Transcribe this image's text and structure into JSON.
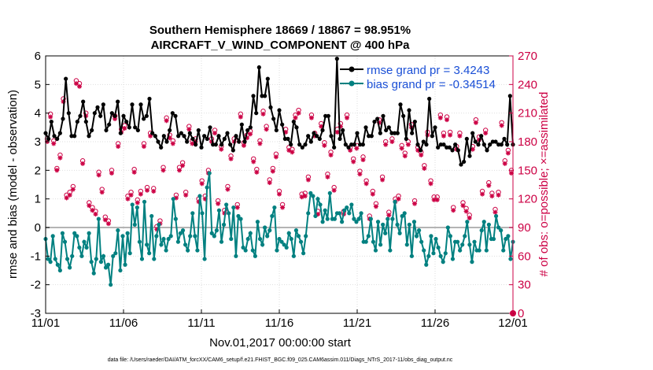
{
  "chart_data": {
    "type": "line",
    "title": "Southern Hemisphere 18669 / 18867 = 98.951%",
    "subtitle": "AIRCRAFT_V_WIND_COMPONENT @ 400 hPa",
    "xlabel": "Nov.01,2017 00:00:00 start",
    "ylabel_left": "rmse and bias (model - observation)",
    "ylabel_right": "# of obs: o=possible; ×=assimilated",
    "xlim": [
      0,
      30
    ],
    "ylim_left": [
      -3,
      6
    ],
    "ylim_right": [
      0,
      270
    ],
    "x_tick_values": [
      0,
      5,
      10,
      15,
      20,
      25,
      30
    ],
    "x_tick_labels": [
      "11/01",
      "11/06",
      "11/11",
      "11/16",
      "11/21",
      "11/26",
      "12/01"
    ],
    "y_left_ticks": [
      "-3",
      "-2",
      "-1",
      "0",
      "1",
      "2",
      "3",
      "4",
      "5",
      "6"
    ],
    "y_right_ticks": [
      "0",
      "30",
      "60",
      "90",
      "120",
      "150",
      "180",
      "210",
      "240",
      "270"
    ],
    "colors": {
      "rmse": "#000000",
      "bias": "#008080",
      "obs": "#cc0044",
      "zero": "#b4b4b4",
      "legend_text": "#1a4fd6"
    },
    "series": [
      {
        "name": "rmse grand pr = 3.4243",
        "axis": "left",
        "values": [
          3.3,
          3.1,
          3.7,
          3.2,
          3.1,
          3.3,
          3.8,
          5.2,
          4.0,
          3.2,
          3.2,
          3.7,
          3.9,
          4.4,
          3.7,
          3.2,
          3.4,
          4.0,
          4.2,
          3.9,
          4.3,
          3.4,
          3.6,
          4.0,
          3.9,
          4.4,
          3.3,
          3.9,
          3.7,
          3.5,
          4.3,
          3.5,
          3.4,
          4.3,
          3.8,
          3.9,
          4.5,
          3.3,
          3.2,
          3.0,
          2.8,
          3.2,
          3.0,
          3.4,
          4.0,
          3.9,
          3.2,
          3.3,
          3.2,
          3.0,
          3.3,
          3.1,
          2.9,
          3.4,
          2.8,
          3.2,
          3.1,
          3.5,
          2.9,
          2.9,
          3.2,
          2.9,
          3.1,
          3.3,
          2.9,
          2.7,
          3.2,
          3.0,
          3.6,
          3.0,
          3.4,
          3.5,
          4.6,
          4.0,
          5.6,
          4.6,
          4.6,
          5.2,
          4.2,
          3.8,
          3.4,
          4.1,
          3.6,
          3.1,
          3.1,
          2.9,
          3.7,
          3.5,
          2.9,
          2.8,
          2.9,
          3.2,
          3.0,
          3.3,
          3.2,
          3.1,
          3.4,
          3.9,
          3.9,
          3.2,
          2.8,
          5.9,
          3.1,
          3.4,
          2.9,
          2.8,
          2.9,
          2.9,
          3.3,
          2.9,
          2.9,
          3.5,
          3.2,
          3.2,
          3.7,
          3.8,
          3.3,
          3.9,
          3.4,
          3.5,
          3.3,
          3.3,
          3.3,
          4.3,
          3.9,
          3.1,
          4.1,
          3.3,
          3.7,
          2.9,
          2.7,
          3.0,
          2.9,
          4.5,
          3.2,
          3.5,
          2.8,
          2.9,
          2.9,
          2.8,
          2.8,
          2.7,
          2.9,
          2.7,
          2.2,
          2.3,
          3.1,
          2.5,
          3.3,
          3.0,
          2.9,
          3.2,
          2.9,
          2.7,
          2.9,
          3.0,
          3.0,
          2.9,
          2.9,
          3.1,
          2.9,
          4.6,
          2.9
        ]
      },
      {
        "name": "bias grand pr = -0.34514",
        "axis": "left",
        "values": [
          -0.4,
          -1.1,
          -1.2,
          -0.3,
          -1.1,
          -1.3,
          -1.5,
          -0.2,
          -0.5,
          -1.1,
          -1.4,
          -1.0,
          -0.2,
          -0.3,
          -0.7,
          -1.0,
          -0.5,
          -0.7,
          -0.2,
          -1.2,
          -1.6,
          -1.1,
          0.3,
          -1.2,
          -1.0,
          -1.4,
          -1.3,
          -2.0,
          -1.0,
          -0.9,
          -0.1,
          -1.5,
          -0.3,
          -1.3,
          -0.2,
          -0.9,
          0.8,
          0.1,
          0.7,
          -0.5,
          -1.1,
          0.9,
          -0.6,
          -0.9,
          0.4,
          -1.1,
          -0.3,
          0.1,
          -0.6,
          -0.4,
          -0.8,
          -0.4,
          -0.3,
          1.0,
          0.3,
          -0.5,
          -0.2,
          -0.1,
          -0.6,
          -0.8,
          -0.3,
          0.5,
          -0.3,
          -0.8,
          1.1,
          0.5,
          -1.1,
          1.4,
          1.9,
          -0.2,
          -0.3,
          -0.1,
          0.6,
          -0.5,
          0.1,
          0.8,
          0.5,
          -0.4,
          0.7,
          -1.0,
          0.4,
          0.3,
          -0.7,
          -0.8,
          -0.4,
          -0.2,
          -0.8,
          -1.0,
          0.2,
          -0.4,
          -0.6,
          0.0,
          -0.3,
          -0.1,
          0.4,
          0.7,
          -0.8,
          -0.4,
          -0.5,
          -0.6,
          -0.7,
          -0.2,
          -0.4,
          -1.0,
          -0.1,
          -0.3,
          -0.5,
          -0.9,
          -0.3,
          0.5,
          1.2,
          1.1,
          0.4,
          1.0,
          0.8,
          0.2,
          0.6,
          0.3,
          1.2,
          0.3,
          0.3,
          0.5,
          0.5,
          0.2,
          0.6,
          0.7,
          0.5,
          0.8,
          0.3,
          0.2,
          0.3,
          0.5,
          -0.5,
          -0.5,
          -0.3,
          0.3,
          -0.5,
          -0.8,
          0.2,
          -0.6,
          0.1,
          -0.2,
          0.3,
          -0.8,
          0.3,
          0.9,
          0.1,
          -0.2,
          0.4,
          0.5,
          -0.6,
          0.1,
          -1.0,
          0.2,
          -0.3,
          -0.1,
          -0.5,
          -0.8,
          -1.3,
          -1.0,
          -0.3,
          -0.9,
          -0.4,
          -0.7,
          -1.0,
          -1.2,
          -0.9,
          0.0,
          -0.3,
          -1.1,
          -0.5,
          -0.5,
          -0.8,
          -0.6,
          -0.3,
          0.2,
          -0.6,
          -1.2,
          -0.5,
          -0.8,
          -0.8,
          -0.1,
          0.2,
          -0.8,
          0.1,
          -0.4,
          -0.4,
          0.4,
          0.0,
          -0.1,
          -0.8,
          -0.4,
          -0.3,
          -1.1,
          -0.5
        ]
      }
    ],
    "obs_possible": {
      "name": "possible",
      "axis": "right",
      "values": [
        183,
        209,
        181,
        152,
        166,
        225,
        124,
        127,
        133,
        244,
        241,
        160,
        210,
        116,
        111,
        107,
        148,
        130,
        101,
        97,
        150,
        207,
        178,
        193,
        197,
        123,
        127,
        151,
        119,
        128,
        178,
        132,
        189,
        131,
        91,
        97,
        153,
        205,
        187,
        181,
        124,
        153,
        158,
        127,
        196,
        181,
        183,
        120,
        139,
        123,
        150,
        183,
        192,
        118,
        175,
        108,
        133,
        165,
        183,
        114,
        209,
        179,
        187,
        191,
        162,
        151,
        181,
        212,
        196,
        140,
        152,
        167,
        128,
        114,
        193,
        174,
        172,
        208,
        213,
        125,
        126,
        143,
        208,
        189,
        107,
        199,
        179,
        146,
        169,
        132,
        193,
        199,
        107,
        208,
        174,
        162,
        176,
        149,
        164,
        139,
        102,
        128,
        115,
        203,
        143,
        180,
        106,
        183,
        120,
        123,
        176,
        168,
        180,
        198,
        118,
        174,
        169,
        155,
        190,
        139,
        122,
        122,
        208,
        189,
        206,
        190,
        111,
        175,
        189,
        116,
        110,
        103,
        175,
        203,
        185,
        128,
        192,
        137,
        126,
        109,
        127,
        200,
        160,
        171,
        150
      ]
    },
    "obs_assimilated": {
      "name": "assimilated",
      "axis": "right",
      "values": [
        180,
        206,
        178,
        150,
        163,
        222,
        121,
        124,
        130,
        241,
        238,
        157,
        207,
        113,
        108,
        104,
        145,
        127,
        98,
        94,
        147,
        204,
        175,
        190,
        194,
        120,
        124,
        148,
        116,
        125,
        175,
        129,
        186,
        128,
        88,
        94,
        150,
        202,
        184,
        178,
        121,
        150,
        155,
        124,
        193,
        178,
        180,
        117,
        136,
        120,
        147,
        180,
        189,
        115,
        172,
        105,
        130,
        162,
        180,
        111,
        206,
        176,
        184,
        188,
        159,
        148,
        178,
        209,
        193,
        137,
        149,
        164,
        125,
        111,
        190,
        171,
        169,
        205,
        210,
        122,
        123,
        140,
        205,
        186,
        104,
        196,
        176,
        143,
        166,
        129,
        190,
        196,
        104,
        205,
        171,
        159,
        173,
        146,
        161,
        136,
        99,
        125,
        112,
        200,
        140,
        177,
        103,
        180,
        117,
        120,
        173,
        165,
        177,
        195,
        115,
        171,
        166,
        152,
        187,
        136,
        119,
        119,
        205,
        186,
        203,
        187,
        108,
        172,
        186,
        113,
        107,
        100,
        172,
        200,
        182,
        125,
        189,
        134,
        123,
        106,
        124,
        197,
        157,
        168,
        147
      ]
    }
  },
  "footer": "data file: /Users/raeder/DAI/ATM_forcXX/CAM6_setup/f.e21.FHIST_BGC.f09_025.CAM6assim.011/Diags_NTrS_2017-11/obs_diag_output.nc",
  "end_markers": {
    "left_label": "0",
    "right_label": "0"
  }
}
